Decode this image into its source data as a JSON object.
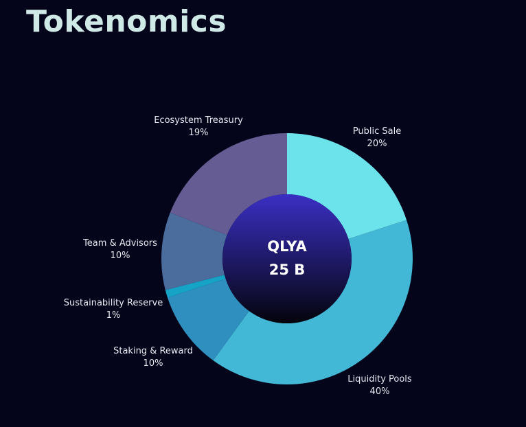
{
  "title": "Tokenomics",
  "center": {
    "token": "QLYA",
    "supply": "25 B"
  },
  "chart_data": {
    "type": "pie",
    "donut": true,
    "categories": [
      "Public Sale",
      "Liquidity Pools",
      "Staking & Reward",
      "Sustainability Reserve",
      "Team & Advisors",
      "Ecosystem Treasury"
    ],
    "values": [
      20,
      40,
      10,
      1,
      10,
      19
    ],
    "value_labels": [
      "20%",
      "40%",
      "10%",
      "1%",
      "10%",
      "19%"
    ],
    "colors": [
      "#6ce3ea",
      "#43b7d6",
      "#2f8fbf",
      "#15a3c6",
      "#4a6d9e",
      "#645c92"
    ],
    "center_gradient": [
      "#3a2fc4",
      "#04040c"
    ],
    "background": "#04041a"
  }
}
